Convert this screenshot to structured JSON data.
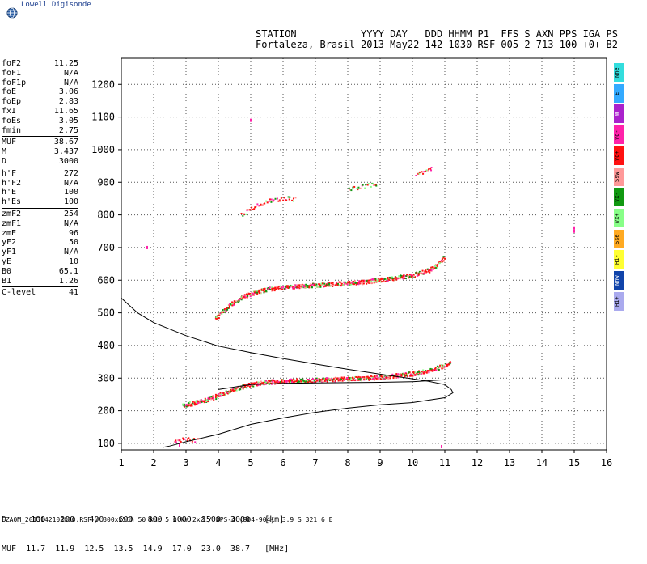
{
  "brand": "Lowell Digisonde",
  "header": {
    "line1": "STATION           YYYY DAY   DDD HHMM P1  FFS S AXN PPS IGA PS",
    "line2": "Fortaleza, Brasil 2013 May22 142 1030 RSF 005 2 713 100 +0+ B2"
  },
  "params": [
    {
      "name": "foF2",
      "value": "11.25"
    },
    {
      "name": "foF1",
      "value": "N/A"
    },
    {
      "name": "foF1p",
      "value": "N/A"
    },
    {
      "name": "foE",
      "value": "3.06"
    },
    {
      "name": "foEp",
      "value": "2.83"
    },
    {
      "name": "fxI",
      "value": "11.65"
    },
    {
      "name": "foEs",
      "value": "3.05"
    },
    {
      "name": "fmin",
      "value": "2.75"
    },
    {
      "name": "MUF",
      "value": "38.67"
    },
    {
      "name": "M",
      "value": "3.437"
    },
    {
      "name": "D",
      "value": "3000"
    },
    {
      "name": "h'F",
      "value": "272"
    },
    {
      "name": "h'F2",
      "value": "N/A"
    },
    {
      "name": "h'E",
      "value": "100"
    },
    {
      "name": "h'Es",
      "value": "100"
    },
    {
      "name": "zmF2",
      "value": "254"
    },
    {
      "name": "zmF1",
      "value": "N/A"
    },
    {
      "name": "zmE",
      "value": "96"
    },
    {
      "name": "yF2",
      "value": "50"
    },
    {
      "name": "yF1",
      "value": "N/A"
    },
    {
      "name": "yE",
      "value": "10"
    },
    {
      "name": "B0",
      "value": "65.1"
    },
    {
      "name": "B1",
      "value": "1.26"
    },
    {
      "name": "C-level",
      "value": "41"
    }
  ],
  "legend": [
    {
      "label": "Nne",
      "color": "#33dddd"
    },
    {
      "label": "E",
      "color": "#33aaff"
    },
    {
      "label": "W",
      "color": "#aa22cc"
    },
    {
      "label": "Vo-",
      "color": "#ff22aa"
    },
    {
      "label": "Vo+",
      "color": "#ff1111"
    },
    {
      "label": "Ssw",
      "color": "#ff9999"
    },
    {
      "label": "Vx-",
      "color": "#119911"
    },
    {
      "label": "Vx+",
      "color": "#88ff88"
    },
    {
      "label": "Sse",
      "color": "#ffaa22"
    },
    {
      "label": "Hi-",
      "color": "#ffff33"
    },
    {
      "label": "Nnw",
      "color": "#1144aa"
    },
    {
      "label": "Hi+",
      "color": "#aaaaee"
    }
  ],
  "muf_table": {
    "row1": "D     100   200   400   600   800  1000  1500  3000   [km]",
    "row2": "MUF  11.7  11.9  12.5  13.5  14.9  17.0  23.0  38.7   [MHz]"
  },
  "footer": "FZA0M_2013142103000.RSF / 300x256h 50 kHz 5.0 km 2x2 / DPS-4 (904-904)  3.9 S 321.6 E",
  "chart_data": {
    "type": "scatter",
    "xlim": [
      1,
      16
    ],
    "ylim": [
      80,
      1280
    ],
    "x_ticks": [
      1,
      2,
      3,
      4,
      5,
      6,
      7,
      8,
      9,
      10,
      11,
      12,
      13,
      14,
      15,
      16
    ],
    "y_ticks": [
      100,
      200,
      300,
      400,
      500,
      600,
      700,
      800,
      900,
      1000,
      1100,
      1200
    ],
    "grid": true,
    "traces": {
      "F2_second_hop": {
        "x": [
          3.9,
          4.2,
          4.6,
          5.0,
          5.5,
          6.0,
          6.5,
          7.0,
          7.5,
          8.0,
          8.5,
          9.0,
          9.5,
          10.0,
          10.5,
          10.8,
          11.0
        ],
        "y": [
          478,
          505,
          535,
          553,
          566,
          572,
          576,
          579,
          582,
          585,
          589,
          595,
          602,
          610,
          625,
          645,
          668
        ]
      },
      "F2_first_hop": {
        "x": [
          2.9,
          3.3,
          3.7,
          4.1,
          4.5,
          5.0,
          5.5,
          6.0,
          6.5,
          7.0,
          7.5,
          8.0,
          8.5,
          9.0,
          9.5,
          10.0,
          10.5,
          10.8,
          11.0,
          11.2
        ],
        "y": [
          210,
          220,
          230,
          245,
          262,
          275,
          282,
          285,
          287,
          288,
          290,
          292,
          294,
          297,
          302,
          308,
          318,
          326,
          334,
          342
        ]
      },
      "E_layer": {
        "x": [
          2.6,
          2.8,
          3.0,
          3.2,
          3.4
        ],
        "y": [
          102,
          104,
          106,
          104,
          103
        ]
      },
      "multihop_800": {
        "x": [
          4.7,
          5.0,
          5.3,
          5.6,
          6.0,
          6.2,
          6.4
        ],
        "y": [
          795,
          815,
          830,
          838,
          842,
          845,
          842
        ]
      },
      "multihop_880": {
        "x": [
          8.0,
          8.2,
          8.4,
          8.6,
          8.9
        ],
        "y": [
          872,
          876,
          880,
          884,
          890
        ]
      },
      "multihop_930": {
        "x": [
          10.1,
          10.3,
          10.5,
          10.6
        ],
        "y": [
          917,
          923,
          933,
          940
        ]
      },
      "sparse_points": {
        "x": [
          5.0,
          1.8,
          2.8,
          15.0,
          15.0,
          10.9
        ],
        "y": [
          1090,
          700,
          95,
          760,
          750,
          90
        ]
      }
    },
    "profile_curve": {
      "x": [
        1.0,
        1.5,
        2.0,
        3.0,
        4.0,
        5.0,
        6.0,
        7.0,
        8.0,
        9.0,
        10.0,
        10.5,
        11.0,
        11.2,
        11.25,
        11.0,
        10.0,
        9.0,
        8.0,
        7.0,
        6.0,
        5.0,
        4.0,
        3.0,
        2.5,
        2.3
      ],
      "y": [
        545,
        500,
        470,
        430,
        398,
        378,
        360,
        343,
        327,
        312,
        298,
        290,
        280,
        265,
        255,
        240,
        225,
        218,
        208,
        195,
        178,
        158,
        128,
        105,
        92,
        88
      ]
    },
    "virtual_height_curve": {
      "x": [
        4.0,
        5.0,
        6.0,
        7.0,
        8.0,
        9.0,
        10.0,
        10.5,
        11.0
      ],
      "y": [
        265,
        280,
        284,
        285,
        286,
        287,
        289,
        292,
        295
      ]
    }
  }
}
